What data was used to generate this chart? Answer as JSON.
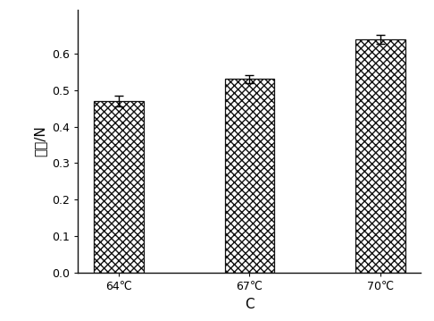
{
  "categories": [
    "64℃",
    "67℃",
    "70℃"
  ],
  "values": [
    0.47,
    0.53,
    0.638
  ],
  "errors": [
    0.015,
    0.01,
    0.012
  ],
  "ylabel": "粘性/N",
  "xlabel": "C",
  "ylim": [
    0.0,
    0.72
  ],
  "yticks": [
    0.0,
    0.1,
    0.2,
    0.3,
    0.4,
    0.5,
    0.6
  ],
  "bar_color": "#ffffff",
  "bar_edgecolor": "#111111",
  "hatch": "xxxx",
  "bar_width": 0.38,
  "figsize": [
    4.86,
    3.59
  ],
  "dpi": 100,
  "label_fontsize": 11,
  "tick_fontsize": 9,
  "cjk_fontsize": 11
}
